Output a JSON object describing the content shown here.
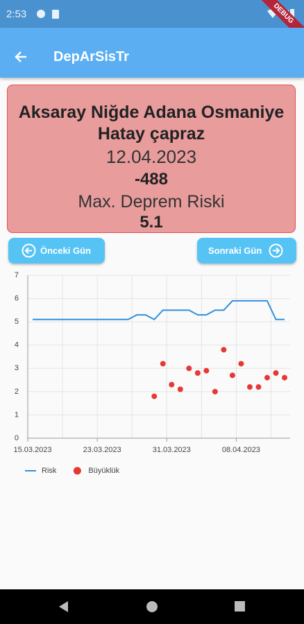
{
  "status_bar": {
    "time": "2:53"
  },
  "debug_banner": "DEBUG",
  "app_bar": {
    "title": "DepArSisTr"
  },
  "card": {
    "region": "Aksaray Niğde Adana Osmaniye Hatay çapraz",
    "date": "12.04.2023",
    "value": -488,
    "risk_label": "Max. Deprem Riski",
    "risk_value": 5.1
  },
  "buttons": {
    "previous": "Önceki Gün",
    "next": "Sonraki Gün"
  },
  "chart_data": {
    "type": "line",
    "x": [
      "15.03.2023",
      "16.03.2023",
      "17.03.2023",
      "18.03.2023",
      "19.03.2023",
      "20.03.2023",
      "21.03.2023",
      "22.03.2023",
      "23.03.2023",
      "24.03.2023",
      "25.03.2023",
      "26.03.2023",
      "27.03.2023",
      "28.03.2023",
      "29.03.2023",
      "30.03.2023",
      "31.03.2023",
      "01.04.2023",
      "02.04.2023",
      "03.04.2023",
      "04.04.2023",
      "05.04.2023",
      "06.04.2023",
      "07.04.2023",
      "08.04.2023",
      "09.04.2023",
      "10.04.2023",
      "11.04.2023",
      "12.04.2023",
      "13.04.2023"
    ],
    "series": [
      {
        "name": "Risk",
        "type": "line",
        "color": "#2f8fe0",
        "values": [
          5.1,
          5.1,
          5.1,
          5.1,
          5.1,
          5.1,
          5.1,
          5.1,
          5.1,
          5.1,
          5.1,
          5.1,
          5.3,
          5.3,
          5.1,
          5.5,
          5.5,
          5.5,
          5.5,
          5.3,
          5.3,
          5.5,
          5.5,
          5.9,
          5.9,
          5.9,
          5.9,
          5.9,
          5.1,
          5.1
        ]
      },
      {
        "name": "Büyüklük",
        "type": "scatter",
        "color": "#e53935",
        "values": [
          null,
          null,
          null,
          null,
          null,
          null,
          null,
          null,
          null,
          null,
          null,
          null,
          null,
          null,
          1.8,
          3.2,
          2.3,
          2.1,
          3.0,
          2.8,
          2.9,
          2.0,
          3.8,
          2.7,
          3.2,
          2.2,
          2.2,
          2.6,
          2.8,
          2.6
        ]
      }
    ],
    "xlim": [
      "15.03.2023",
      "13.04.2023"
    ],
    "xticks": [
      "15.03.2023",
      "23.03.2023",
      "31.03.2023",
      "08.04.2023"
    ],
    "ylim": [
      0,
      7
    ],
    "yticks": [
      0,
      1,
      2,
      3,
      4,
      5,
      6,
      7
    ],
    "grid": true,
    "legend": "bottom-left"
  }
}
